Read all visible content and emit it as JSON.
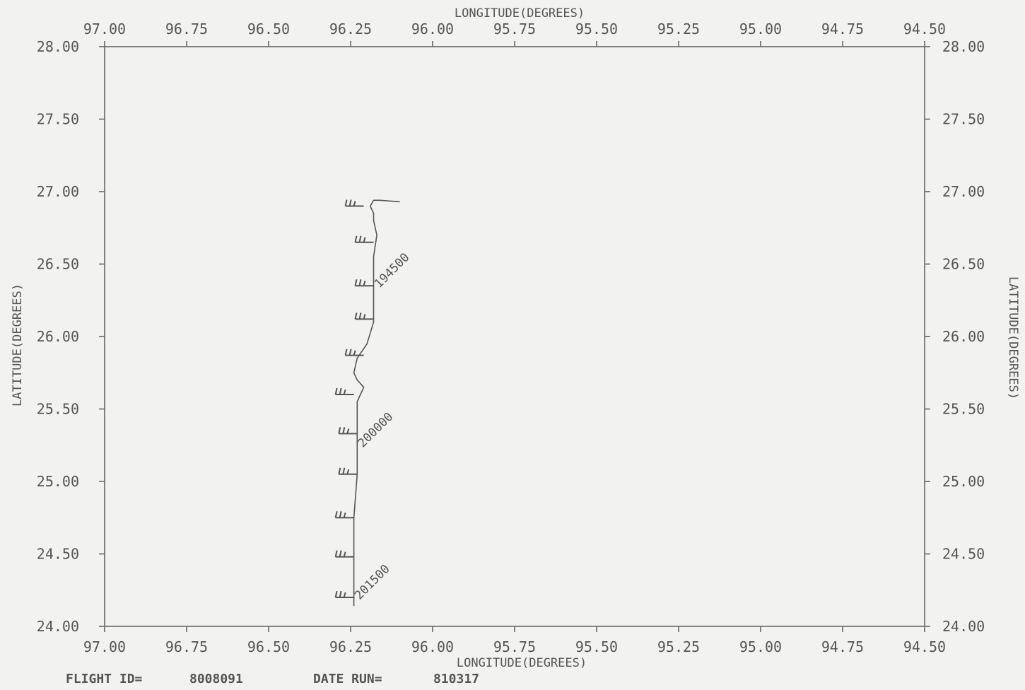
{
  "chart_data": {
    "type": "line",
    "title": "",
    "xlabel": "LONGITUDE(DEGREES)",
    "ylabel": "LATITUDE(DEGREES)",
    "xlim": [
      97.0,
      94.5
    ],
    "ylim": [
      24.0,
      28.0
    ],
    "x_ticks": [
      "97.00",
      "96.75",
      "96.50",
      "96.25",
      "96.00",
      "95.75",
      "95.50",
      "95.25",
      "95.00",
      "94.75",
      "94.50"
    ],
    "y_ticks": [
      "28.00",
      "27.50",
      "27.00",
      "26.50",
      "26.00",
      "25.50",
      "25.00",
      "24.50",
      "24.00"
    ],
    "series": [
      {
        "x": [
          96.24,
          96.24,
          96.24,
          96.24,
          96.23,
          96.23,
          96.23,
          96.23,
          96.23,
          96.23,
          96.22,
          96.21,
          96.23,
          96.24,
          96.23,
          96.2,
          96.18,
          96.18,
          96.18,
          96.18,
          96.17,
          96.18,
          96.18,
          96.19,
          96.18,
          96.16,
          96.1
        ],
        "y": [
          24.14,
          24.3,
          24.5,
          24.75,
          25.05,
          25.25,
          25.3,
          25.4,
          25.5,
          25.55,
          25.6,
          25.65,
          25.7,
          25.75,
          25.85,
          25.95,
          26.1,
          26.25,
          26.4,
          26.55,
          26.7,
          26.8,
          26.85,
          26.9,
          26.94,
          26.94,
          26.93
        ]
      }
    ],
    "wind_barbs": [
      {
        "lon": 96.21,
        "lat": 26.9
      },
      {
        "lon": 96.18,
        "lat": 26.65
      },
      {
        "lon": 96.18,
        "lat": 26.35
      },
      {
        "lon": 96.18,
        "lat": 26.12
      },
      {
        "lon": 96.21,
        "lat": 25.87
      },
      {
        "lon": 96.24,
        "lat": 25.6
      },
      {
        "lon": 96.23,
        "lat": 25.33
      },
      {
        "lon": 96.23,
        "lat": 25.05
      },
      {
        "lon": 96.24,
        "lat": 24.75
      },
      {
        "lon": 96.24,
        "lat": 24.48
      },
      {
        "lon": 96.24,
        "lat": 24.2
      }
    ],
    "time_labels": [
      {
        "text": "194500",
        "lon": 96.18,
        "lat": 26.35
      },
      {
        "text": "200000",
        "lon": 96.23,
        "lat": 25.25
      },
      {
        "text": "201500",
        "lon": 96.24,
        "lat": 24.2
      }
    ],
    "grid": false
  },
  "footer": {
    "flight_id_label": "FLIGHT ID=",
    "flight_id_value": "8008091",
    "date_run_label": "DATE RUN=",
    "date_run_value": "810317"
  }
}
